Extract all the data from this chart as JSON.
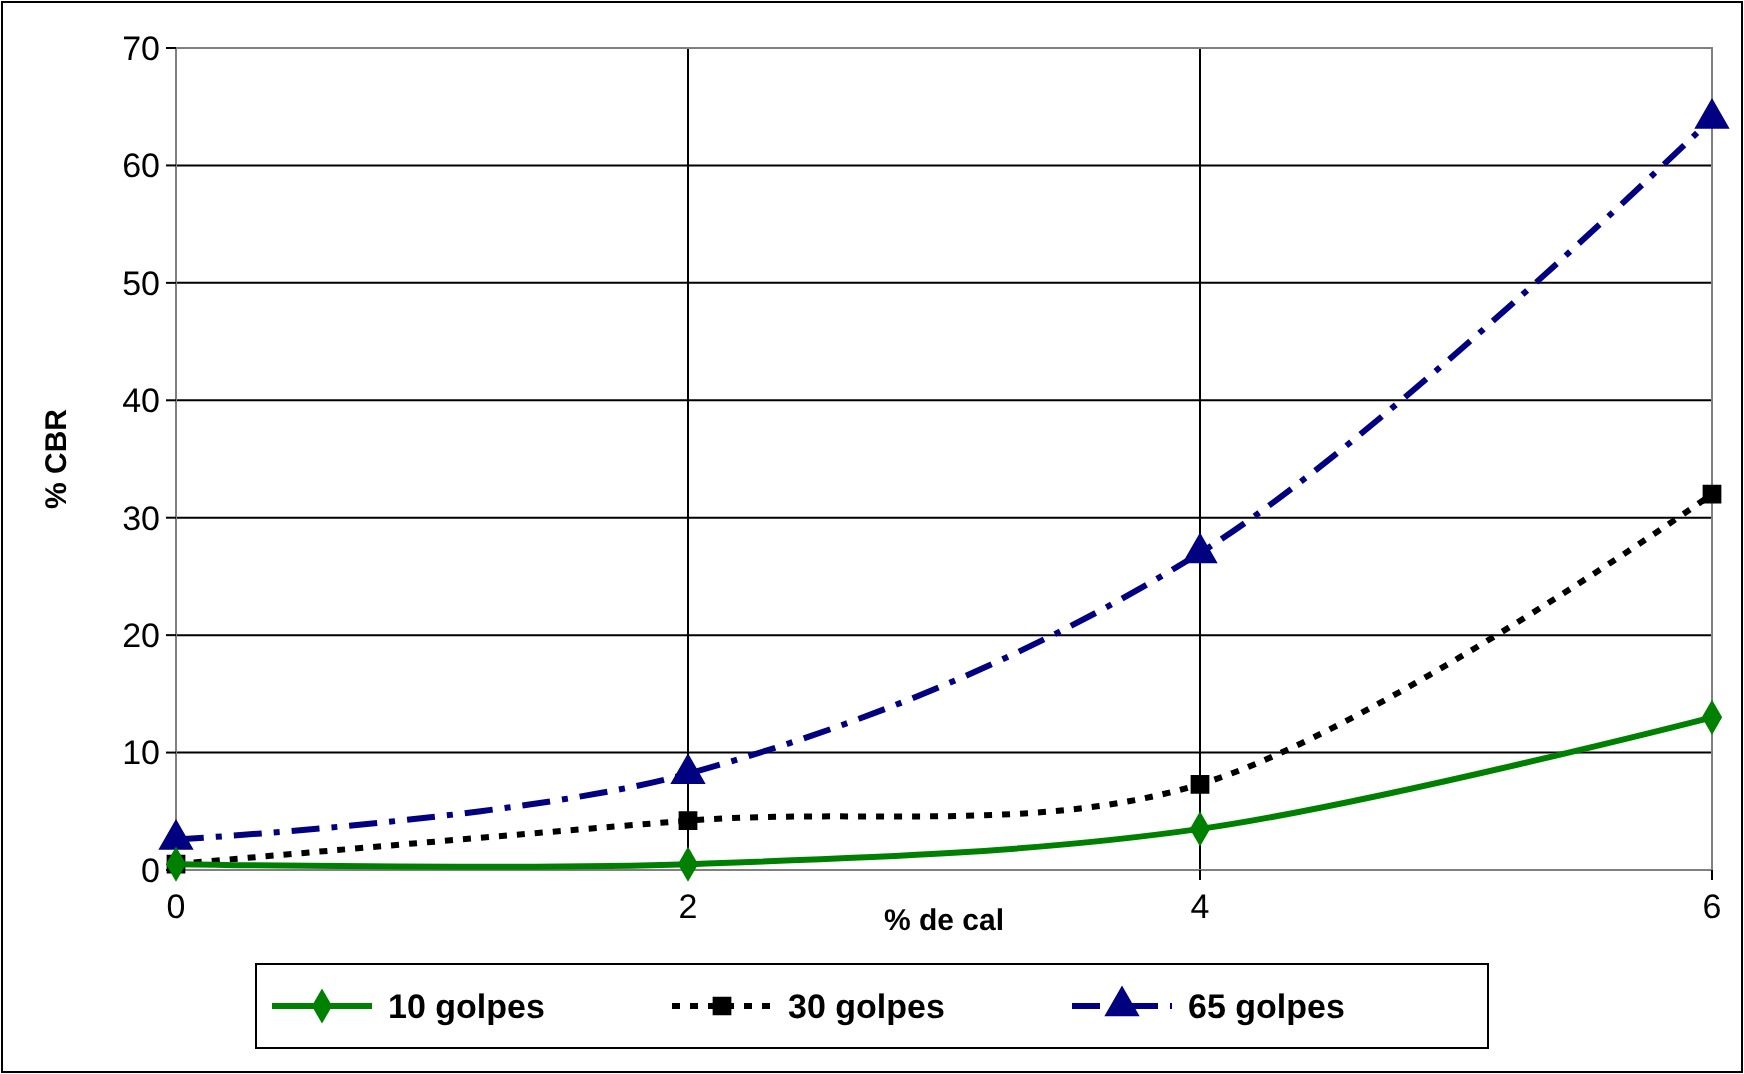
{
  "chart_data": {
    "type": "line",
    "xlabel": "% de cal",
    "ylabel": "% CBR",
    "x": [
      0,
      2,
      4,
      6
    ],
    "xlim": [
      0,
      6
    ],
    "xticks": [
      0,
      2,
      4,
      6
    ],
    "ylim": [
      0,
      70
    ],
    "yticks": [
      0,
      10,
      20,
      30,
      40,
      50,
      60,
      70
    ],
    "grid": true,
    "legend": "bottom",
    "series": [
      {
        "name": "10 golpes",
        "color": "#008000",
        "values": [
          0.5,
          0.5,
          3.5,
          13
        ],
        "marker": "diamond",
        "line_style": "solid"
      },
      {
        "name": "30 golpes",
        "color": "#000000",
        "values": [
          0.5,
          4.2,
          7.3,
          32
        ],
        "marker": "square",
        "line_style": "dotted"
      },
      {
        "name": "65 golpes",
        "color": "#000080",
        "values": [
          2.6,
          8.2,
          27,
          64
        ],
        "marker": "triangle",
        "line_style": "dashdot"
      }
    ]
  }
}
